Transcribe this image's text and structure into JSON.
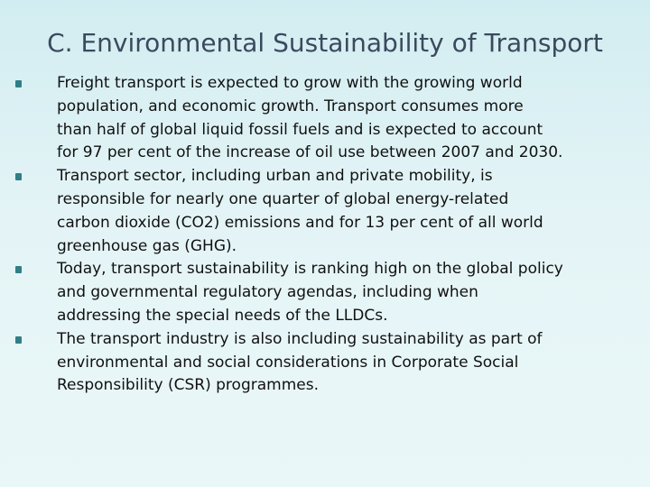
{
  "slide": {
    "title": "C. Environmental Sustainability of Transport",
    "bullets": [
      {
        "lines": [
          "Freight transport is expected to grow with the growing world",
          "population, and economic growth. Transport consumes more",
          "than half of global liquid fossil fuels and is expected to account",
          "for 97 per cent of the increase of oil use between 2007 and 2030."
        ]
      },
      {
        "lines": [
          "Transport sector, including urban and private mobility, is",
          "responsible for nearly one quarter of global energy-related",
          "carbon dioxide (CO2) emissions and for 13 per cent of all world",
          "greenhouse gas (GHG)."
        ]
      },
      {
        "lines": [
          "Today, transport sustainability is ranking high on the global policy",
          "and governmental regulatory agendas, including when",
          "addressing the special needs of the LLDCs."
        ]
      },
      {
        "lines": [
          "The transport industry is also including sustainability as part of",
          "environmental and social considerations in Corporate Social",
          "Responsibility (CSR) programmes."
        ]
      }
    ]
  },
  "colors": {
    "title": "#3a4a5e",
    "bullet_marker": "#2f7f86",
    "background_top": "#d2edf1",
    "background_bottom": "#eaf7f8"
  },
  "icons": {
    "bullet_marker": "square-bullet-icon"
  }
}
